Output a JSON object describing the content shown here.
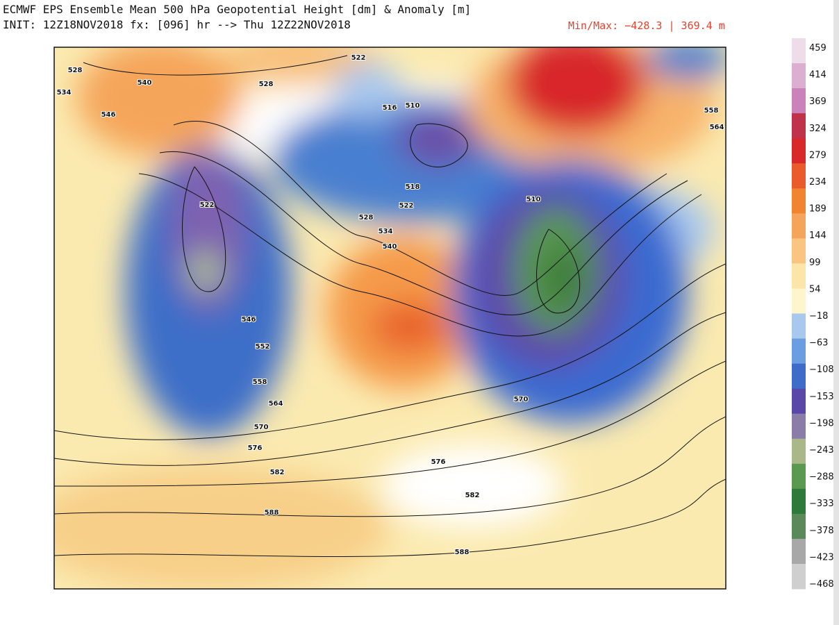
{
  "header": {
    "title": "ECMWF EPS Ensemble Mean 500 hPa Geopotential Height [dm] & Anomaly [m]",
    "init": "INIT: 12Z18NOV2018 fx: [096] hr --> Thu 12Z22NOV2018",
    "minmax": "Min/Max: −428.3 | 369.4 m"
  },
  "colorbar": {
    "ticks": [
      "459",
      "414",
      "369",
      "324",
      "279",
      "234",
      "189",
      "144",
      "99",
      "54",
      "−18",
      "−63",
      "−108",
      "−153",
      "−198",
      "−243",
      "−288",
      "−333",
      "−378",
      "−423",
      "−468"
    ],
    "colors": [
      "#eedcea",
      "#dcaed0",
      "#c983b8",
      "#c0324a",
      "#d8282a",
      "#ea5a2a",
      "#f1842e",
      "#f5a55a",
      "#f8c680",
      "#fbe6a8",
      "#fdf5cc",
      "#a8c8ee",
      "#6a9ee0",
      "#3f6cc8",
      "#5a48a8",
      "#8a7ea8",
      "#a8b888",
      "#5a9a50",
      "#2e7a3a",
      "#5a8a5a",
      "#a8a8a8",
      "#cfcfcf"
    ]
  },
  "contour_labels": [
    "528",
    "534",
    "546",
    "540",
    "522",
    "528",
    "516",
    "510",
    "522",
    "518",
    "522",
    "528",
    "534",
    "540",
    "546",
    "552",
    "558",
    "564",
    "570",
    "576",
    "582",
    "588",
    "576",
    "582",
    "588",
    "570",
    "558",
    "564",
    "510"
  ]
}
